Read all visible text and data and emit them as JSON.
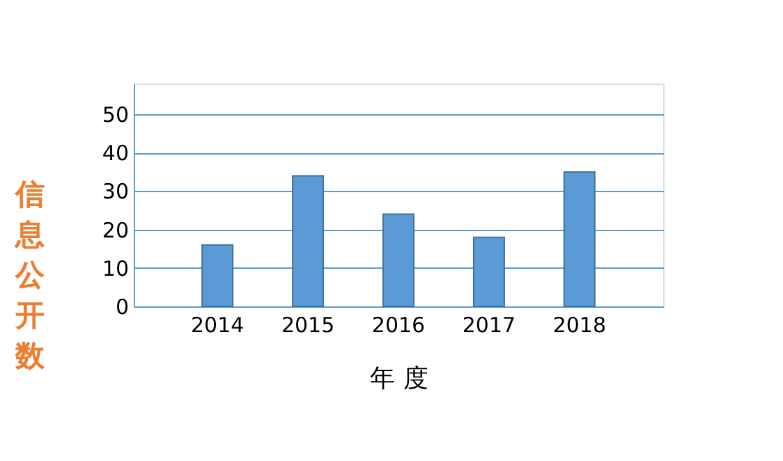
{
  "chart_data": {
    "type": "bar",
    "xlabel": "年 度",
    "ylabel": "信息公开数",
    "categories": [
      "2014",
      "2015",
      "2016",
      "2017",
      "2018"
    ],
    "values": [
      16,
      34,
      24,
      18,
      35
    ],
    "color": "#5b9bd5",
    "ylim": [
      0,
      58
    ],
    "yticks": [
      0,
      10,
      20,
      30,
      40,
      50
    ],
    "grid": "y"
  }
}
